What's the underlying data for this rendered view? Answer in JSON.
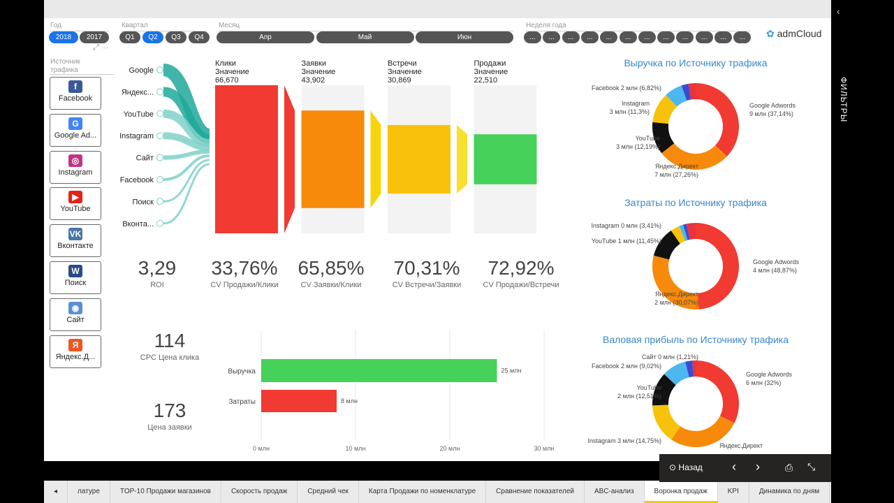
{
  "slicers": {
    "year": {
      "label": "Год",
      "options": [
        "2018",
        "2017"
      ],
      "selected": "2018"
    },
    "quarter": {
      "label": "Квартал",
      "options": [
        "Q1",
        "Q2",
        "Q3",
        "Q4"
      ],
      "selected": "Q2"
    },
    "month": {
      "label": "Месяц",
      "options": [
        "Апр",
        "Май",
        "Июн"
      ]
    },
    "week": {
      "label": "Неделя года",
      "options": [
        "...",
        "...",
        "...",
        "...",
        "...",
        "...",
        "...",
        "...",
        "...",
        "...",
        "...",
        "..."
      ]
    },
    "source": {
      "label": "Источник трафика",
      "items": [
        "Facebook",
        "Google Ad...",
        "Instagram",
        "YouTube",
        "Вконтакте",
        "Поиск",
        "Сайт",
        "Яндекс.Д..."
      ]
    }
  },
  "brand": "admCloud",
  "filters_label": "ФИЛЬТРЫ",
  "sankey_sources": [
    "Google",
    "Яндекс...",
    "YouTube",
    "Instagram",
    "Сайт",
    "Facebook",
    "Поиск",
    "Вконта..."
  ],
  "funnel": [
    {
      "stage": "Клики",
      "measure": "Значение",
      "value": "66,670",
      "num": 66670,
      "color": "#f03a32"
    },
    {
      "stage": "Заявки",
      "measure": "Значение",
      "value": "43,902",
      "num": 43902,
      "color": "#f78a0a"
    },
    {
      "stage": "Встречи",
      "measure": "Значение",
      "value": "30,869",
      "num": 30869,
      "color": "#f8c20c"
    },
    {
      "stage": "Продажи",
      "measure": "Значение",
      "value": "22,510",
      "num": 22510,
      "color": "#46d15a"
    }
  ],
  "kpis": [
    {
      "value": "3,29",
      "label": "ROI"
    },
    {
      "value": "33,76%",
      "label": "CV Продажи/Клики"
    },
    {
      "value": "65,85%",
      "label": "CV Заявки/Клики"
    },
    {
      "value": "70,31%",
      "label": "CV Встречи/Заявки"
    },
    {
      "value": "72,92%",
      "label": "CV Продажи/Встречи"
    }
  ],
  "cards": [
    {
      "value": "114",
      "label": "CPC Цена клика"
    },
    {
      "value": "173",
      "label": "Цена заявки"
    }
  ],
  "chart_data": [
    {
      "type": "bar",
      "orientation": "horizontal",
      "categories": [
        "Выручка",
        "Затраты"
      ],
      "values": [
        25,
        8
      ],
      "data_labels": [
        "25 млн",
        "8 млн"
      ],
      "colors": [
        "#46d15a",
        "#f03a32"
      ],
      "xticks": [
        "0 млн",
        "10 млн",
        "20 млн",
        "30 млн"
      ],
      "xlim": [
        0,
        30
      ]
    },
    {
      "type": "pie",
      "donut": true,
      "title": "Выручка по Источнику трафика",
      "slices": [
        {
          "name": "Google Adwords",
          "label": "Google Adwords",
          "value_label": "9 млн (37,14%)",
          "pct": 37.14,
          "color": "#f03a32"
        },
        {
          "name": "Яндекс.Директ",
          "label": "Яндекс.Директ",
          "value_label": "7 млн (27,26%)",
          "pct": 27.26,
          "color": "#f78a0a"
        },
        {
          "name": "YouTube",
          "label": "YouTube",
          "value_label": "3 млн (12,19%)",
          "pct": 12.19,
          "color": "#111111"
        },
        {
          "name": "Instagram",
          "label": "Instagram",
          "value_label": "3 млн (11,3%)",
          "pct": 11.3,
          "color": "#f8c20c"
        },
        {
          "name": "Facebook",
          "label": "Facebook 2 млн (6,82%)",
          "value_label": "",
          "pct": 6.82,
          "color": "#4db8f0"
        },
        {
          "name": "other",
          "label": "",
          "value_label": "",
          "pct": 2.6,
          "color": "#3b4bd0"
        },
        {
          "name": "other2",
          "label": "",
          "value_label": "",
          "pct": 2.69,
          "color": "#e8323c"
        }
      ]
    },
    {
      "type": "pie",
      "donut": true,
      "title": "Затраты по Источнику трафика",
      "slices": [
        {
          "name": "Google Adwords",
          "label": "Google Adwords",
          "value_label": "4 млн (48,87%)",
          "pct": 48.87,
          "color": "#f03a32"
        },
        {
          "name": "Яндекс.Директ",
          "label": "Яндекс.Директ",
          "value_label": "2 млн (30,07%)",
          "pct": 30.07,
          "color": "#f78a0a"
        },
        {
          "name": "YouTube",
          "label": "YouTube 1 млн (11,45%)",
          "value_label": "",
          "pct": 11.45,
          "color": "#111111"
        },
        {
          "name": "Instagram",
          "label": "Instagram 0 млн (3,41%)",
          "value_label": "",
          "pct": 3.41,
          "color": "#f8c20c"
        },
        {
          "name": "other",
          "label": "",
          "value_label": "",
          "pct": 1.5,
          "color": "#4db8f0"
        },
        {
          "name": "other2",
          "label": "",
          "value_label": "",
          "pct": 1.3,
          "color": "#3b4bd0"
        },
        {
          "name": "other3",
          "label": "",
          "value_label": "",
          "pct": 3.4,
          "color": "#e8323c"
        }
      ]
    },
    {
      "type": "pie",
      "donut": true,
      "title": "Валовая прибыль по Источнику трафика",
      "slices": [
        {
          "name": "Google Adwords",
          "label": "Google Adwords",
          "value_label": "6 млн (32%)",
          "pct": 32,
          "color": "#f03a32"
        },
        {
          "name": "Яндекс.Директ",
          "label": "Яндекс.Директ",
          "value_label": "",
          "pct": 26.9,
          "color": "#f78a0a"
        },
        {
          "name": "Instagram",
          "label": "Instagram 3 млн (14,75%)",
          "value_label": "",
          "pct": 14.75,
          "color": "#f8c20c"
        },
        {
          "name": "YouTube",
          "label": "YouTube",
          "value_label": "2 млн (12,51%)",
          "pct": 12.51,
          "color": "#111111"
        },
        {
          "name": "Facebook",
          "label": "Facebook 2 млн (9,02%)",
          "value_label": "",
          "pct": 9.02,
          "color": "#4db8f0"
        },
        {
          "name": "other",
          "label": "",
          "value_label": "",
          "pct": 2.6,
          "color": "#3b4bd0"
        },
        {
          "name": "Сайт",
          "label": "Сайт 0 млн (1,21%)",
          "value_label": "",
          "pct": 1.21,
          "color": "#e8323c"
        }
      ]
    }
  ],
  "tabs": [
    "латуре",
    "TOP-10 Продажи магазинов",
    "Скорость продаж",
    "Средний чек",
    "Карта Продажи по номенклатуре",
    "Сравнение показателей",
    "ABC-анализ",
    "Воронка продаж",
    "KPI",
    "Динамика по дням"
  ],
  "active_tab": "Воронка продаж",
  "nav": {
    "back": "Назад"
  }
}
